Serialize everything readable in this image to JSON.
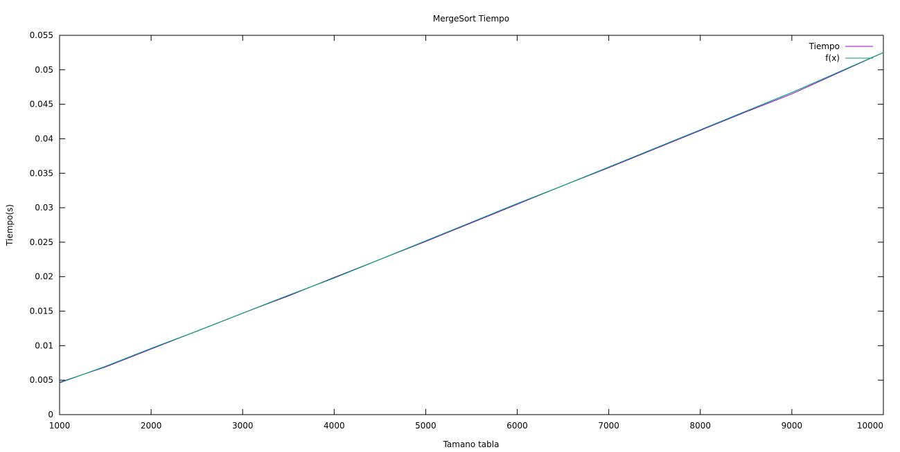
{
  "chart_data": {
    "type": "line",
    "title": "MergeSort Tiempo",
    "xlabel": "Tamano tabla",
    "ylabel": "Tiempo(s)",
    "xlim": [
      1000,
      10000
    ],
    "ylim": [
      0,
      0.055
    ],
    "grid": false,
    "legend_position": "top-right",
    "x_ticks": [
      1000,
      2000,
      3000,
      4000,
      5000,
      6000,
      7000,
      8000,
      9000,
      10000
    ],
    "y_ticks": [
      0,
      0.005,
      0.01,
      0.015,
      0.02,
      0.025,
      0.03,
      0.035,
      0.04,
      0.045,
      0.05,
      0.055
    ],
    "x_tick_labels": [
      "1000",
      "2000",
      "3000",
      "4000",
      "5000",
      "6000",
      "7000",
      "8000",
      "9000",
      "10000"
    ],
    "y_tick_labels": [
      "0",
      "0.005",
      "0.01",
      "0.015",
      "0.02",
      "0.025",
      "0.03",
      "0.035",
      "0.04",
      "0.045",
      "0.05",
      "0.055"
    ],
    "x": [
      1000,
      1500,
      2000,
      2500,
      3000,
      3500,
      4000,
      4500,
      5000,
      5500,
      6000,
      6500,
      7000,
      7500,
      8000,
      8500,
      9000,
      9500,
      10000
    ],
    "series": [
      {
        "name": "Tiempo",
        "color": "#9400d3",
        "values": [
          0.0047,
          0.0069,
          0.0095,
          0.0121,
          0.0147,
          0.0172,
          0.0199,
          0.0225,
          0.0251,
          0.0278,
          0.0305,
          0.0332,
          0.0358,
          0.0385,
          0.0412,
          0.0439,
          0.0465,
          0.0495,
          0.0525
        ]
      },
      {
        "name": "f(x)",
        "color": "#009e73",
        "values": [
          0.0046,
          0.007,
          0.0096,
          0.0121,
          0.0147,
          0.0173,
          0.0198,
          0.0225,
          0.0252,
          0.0279,
          0.0306,
          0.0332,
          0.0359,
          0.0386,
          0.0413,
          0.044,
          0.0467,
          0.0496,
          0.0525
        ]
      }
    ]
  }
}
